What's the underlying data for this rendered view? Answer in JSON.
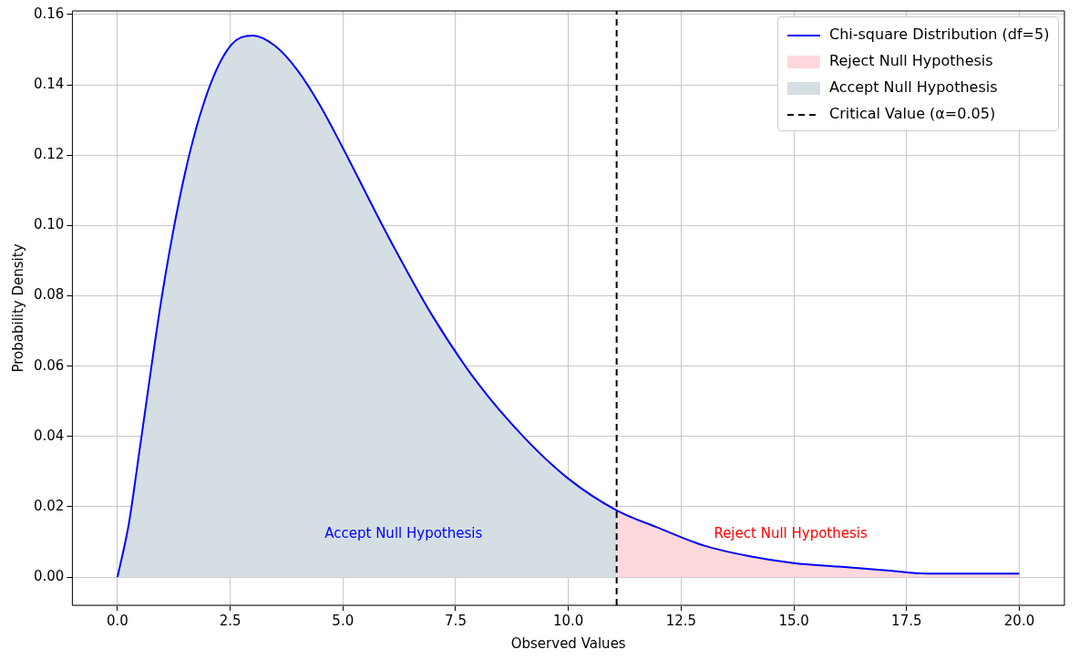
{
  "chart_data": {
    "type": "line",
    "xlabel": "Observed Values",
    "ylabel": "Probability Density",
    "xlim": [
      -1,
      21
    ],
    "ylim": [
      -0.008,
      0.161
    ],
    "xticks": [
      {
        "value": 0,
        "label": "0.0"
      },
      {
        "value": 2.5,
        "label": "2.5"
      },
      {
        "value": 5,
        "label": "5.0"
      },
      {
        "value": 7.5,
        "label": "7.5"
      },
      {
        "value": 10,
        "label": "10.0"
      },
      {
        "value": 12.5,
        "label": "12.5"
      },
      {
        "value": 15,
        "label": "15.0"
      },
      {
        "value": 17.5,
        "label": "17.5"
      },
      {
        "value": 20,
        "label": "20.0"
      }
    ],
    "yticks": [
      {
        "value": 0,
        "label": "0.00"
      },
      {
        "value": 0.02,
        "label": "0.02"
      },
      {
        "value": 0.04,
        "label": "0.04"
      },
      {
        "value": 0.06,
        "label": "0.06"
      },
      {
        "value": 0.08,
        "label": "0.08"
      },
      {
        "value": 0.1,
        "label": "0.10"
      },
      {
        "value": 0.12,
        "label": "0.12"
      },
      {
        "value": 0.14,
        "label": "0.14"
      },
      {
        "value": 0.16,
        "label": "0.16"
      }
    ],
    "grid": true,
    "legend": "top right",
    "series": [
      {
        "name": "Chi-square Distribution (df=5)",
        "color": "#0000ff",
        "x": [
          0,
          0.25,
          0.5,
          1,
          1.5,
          2,
          2.5,
          3,
          3.5,
          4,
          4.5,
          5,
          6,
          7,
          8,
          9,
          10,
          11.07,
          12,
          13,
          14,
          15,
          16,
          17,
          18,
          19,
          20
        ],
        "values": [
          0,
          0.015,
          0.037,
          0.081,
          0.115,
          0.138,
          0.151,
          0.154,
          0.151,
          0.144,
          0.134,
          0.122,
          0.097,
          0.074,
          0.055,
          0.04,
          0.028,
          0.019,
          0.014,
          0.009,
          0.006,
          0.004,
          0.003,
          0.002,
          0.001,
          0.001,
          0.001
        ]
      },
      {
        "name": "Reject Null Hypothesis",
        "type": "area",
        "color": "#ffd8dc",
        "x": [
          11.07,
          12,
          13,
          14,
          15,
          16,
          17,
          18,
          19,
          20
        ],
        "values": [
          0.019,
          0.014,
          0.009,
          0.006,
          0.004,
          0.003,
          0.002,
          0.001,
          0.001,
          0.001
        ]
      },
      {
        "name": "Accept Null Hypothesis",
        "type": "area",
        "color": "#d5dfe3",
        "x": [
          0,
          0.25,
          0.5,
          1,
          1.5,
          2,
          2.5,
          3,
          3.5,
          4,
          4.5,
          5,
          6,
          7,
          8,
          9,
          10,
          11.07
        ],
        "values": [
          0,
          0.015,
          0.037,
          0.081,
          0.115,
          0.138,
          0.151,
          0.154,
          0.151,
          0.144,
          0.134,
          0.122,
          0.097,
          0.074,
          0.055,
          0.04,
          0.028,
          0.019
        ]
      },
      {
        "name": "Critical Value (α=0.05)",
        "color": "#000000",
        "line_style": "dashed",
        "x": [
          11.07,
          11.07
        ],
        "values": [
          -0.008,
          0.161
        ]
      }
    ],
    "annotations": [
      "Accept Null Hypothesis",
      "Reject Null Hypothesis"
    ]
  }
}
